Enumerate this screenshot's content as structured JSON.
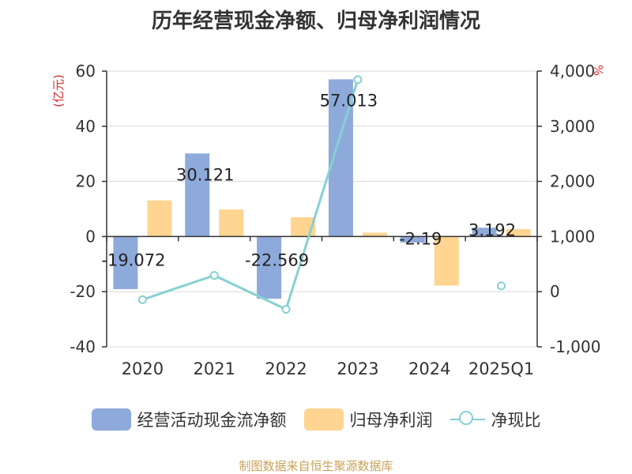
{
  "chart_data": {
    "type": "bar+line",
    "title": "历年经营现金净额、归母净利润情况",
    "categories": [
      "2020",
      "2021",
      "2022",
      "2023",
      "2024",
      "2025Q1"
    ],
    "left_axis_label": "(亿元)",
    "right_axis_label": "%",
    "left_ylim": [
      -40,
      60
    ],
    "left_ticks": [
      "60",
      "40",
      "20",
      "0",
      "-20",
      "-40"
    ],
    "right_ylim": [
      -1000,
      4000
    ],
    "right_ticks": [
      "4,000",
      "3,000",
      "2,000",
      "1,000",
      "0",
      "-1,000"
    ],
    "series": [
      {
        "name": "经营活动现金流净额",
        "type": "bar",
        "axis": "left",
        "color": "#8eaadb",
        "values": [
          -19.072,
          30.121,
          -22.569,
          57.013,
          -2.19,
          3.192
        ],
        "labels": [
          "-19.072",
          "30.121",
          "-22.569",
          "57.013",
          "-2.19",
          "3.192"
        ]
      },
      {
        "name": "归母净利润",
        "type": "bar",
        "axis": "left",
        "color": "#ffd591",
        "values": [
          13.1,
          9.8,
          7.0,
          1.4,
          -17.8,
          2.7
        ]
      },
      {
        "name": "净现比",
        "type": "line",
        "axis": "right",
        "color": "#86d0d4",
        "values": [
          -145,
          295,
          -320,
          3845,
          null,
          105
        ]
      }
    ],
    "grid": true,
    "legend_position": "bottom"
  },
  "source_text": "制图数据来自恒生聚源数据库"
}
